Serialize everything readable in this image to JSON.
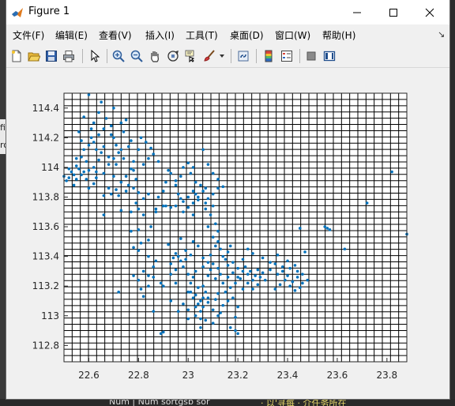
{
  "window": {
    "title": "Figure 1"
  },
  "menu": [
    "文件(F)",
    "编辑(E)",
    "查看(V)",
    "插入(I)",
    "工具(T)",
    "桌面(D)",
    "窗口(W)",
    "帮助(H)"
  ],
  "toolbar": {
    "icons": [
      "new-figure-icon",
      "open-file-icon",
      "save-icon",
      "print-icon",
      "pointer-icon",
      "zoom-in-icon",
      "zoom-out-icon",
      "pan-icon",
      "rotate-3d-icon",
      "data-cursor-icon",
      "brush-icon",
      "link-plot-icon",
      "insert-colorbar-icon",
      "insert-legend-icon",
      "hide-plot-tools-icon",
      "show-plot-tools-icon"
    ]
  },
  "background_fragments": {
    "left": [
      "fi",
      "ro"
    ],
    "bottom": [
      "Num    |  Num    sortgsb sor",
      "·   以'寻每 · 介任务所在"
    ]
  },
  "chart_data": {
    "type": "scatter",
    "title": "",
    "xlabel": "",
    "ylabel": "",
    "xlim": [
      22.5,
      23.88
    ],
    "ylim": [
      112.69,
      114.5
    ],
    "xticks": [
      22.6,
      22.8,
      23,
      23.2,
      23.4,
      23.6,
      23.8
    ],
    "xtick_labels": [
      "22.6",
      "22.8",
      "23",
      "23.2",
      "23.4",
      "23.6",
      "23.8"
    ],
    "yticks": [
      112.8,
      113,
      113.2,
      113.4,
      113.6,
      113.8,
      114,
      114.2,
      114.4
    ],
    "ytick_labels": [
      "112.8",
      "113",
      "113.2",
      "113.4",
      "113.6",
      "113.8",
      "114",
      "114.2",
      "114.4"
    ],
    "grid": "fine mesh (~0.033 x 0.042 spacing)",
    "grid_nx": 42,
    "grid_ny": 43,
    "marker_color": "#0072bd",
    "points": [
      [
        22.5,
        113.94
      ],
      [
        22.52,
        113.93
      ],
      [
        22.54,
        113.95
      ],
      [
        22.53,
        113.97
      ],
      [
        22.55,
        114.01
      ],
      [
        22.56,
        113.99
      ],
      [
        22.57,
        113.95
      ],
      [
        22.55,
        113.92
      ],
      [
        22.51,
        113.91
      ],
      [
        22.58,
        113.97
      ],
      [
        22.59,
        114.04
      ],
      [
        22.57,
        114.07
      ],
      [
        22.58,
        114.12
      ],
      [
        22.6,
        114.15
      ],
      [
        22.61,
        114.2
      ],
      [
        22.62,
        114.17
      ],
      [
        22.63,
        114.12
      ],
      [
        22.65,
        114.1
      ],
      [
        22.64,
        114.05
      ],
      [
        22.62,
        114.0
      ],
      [
        22.6,
        113.98
      ],
      [
        22.63,
        113.93
      ],
      [
        22.66,
        113.96
      ],
      [
        22.68,
        114.02
      ],
      [
        22.7,
        114.06
      ],
      [
        22.72,
        114.1
      ],
      [
        22.71,
        114.15
      ],
      [
        22.69,
        114.22
      ],
      [
        22.66,
        114.26
      ],
      [
        22.62,
        114.3
      ],
      [
        22.58,
        114.34
      ],
      [
        22.56,
        114.24
      ],
      [
        22.6,
        114.49
      ],
      [
        22.65,
        114.44
      ],
      [
        22.69,
        114.28
      ],
      [
        22.73,
        114.3
      ],
      [
        22.75,
        114.32
      ],
      [
        22.74,
        114.24
      ],
      [
        22.77,
        114.18
      ],
      [
        22.8,
        114.12
      ],
      [
        22.81,
        114.2
      ],
      [
        22.83,
        114.17
      ],
      [
        22.85,
        114.13
      ],
      [
        22.84,
        114.06
      ],
      [
        22.82,
        114.02
      ],
      [
        22.78,
        113.98
      ],
      [
        22.75,
        113.94
      ],
      [
        22.73,
        113.9
      ],
      [
        22.71,
        113.85
      ],
      [
        22.69,
        113.82
      ],
      [
        22.72,
        113.81
      ],
      [
        22.75,
        113.84
      ],
      [
        22.78,
        113.86
      ],
      [
        22.8,
        113.83
      ],
      [
        22.82,
        113.79
      ],
      [
        22.79,
        113.76
      ],
      [
        22.8,
        113.72
      ],
      [
        22.77,
        113.7
      ],
      [
        22.82,
        113.68
      ],
      [
        22.87,
        113.72
      ],
      [
        22.9,
        113.74
      ],
      [
        22.93,
        113.73
      ],
      [
        22.85,
        113.6
      ],
      [
        22.8,
        113.58
      ],
      [
        22.77,
        113.57
      ],
      [
        22.84,
        113.51
      ],
      [
        22.81,
        113.49
      ],
      [
        22.78,
        113.46
      ],
      [
        22.8,
        113.44
      ],
      [
        22.84,
        113.4
      ],
      [
        22.87,
        113.37
      ],
      [
        22.86,
        113.33
      ],
      [
        22.82,
        113.3
      ],
      [
        22.84,
        113.27
      ],
      [
        22.86,
        113.26
      ],
      [
        22.8,
        113.24
      ],
      [
        22.78,
        113.27
      ],
      [
        22.72,
        113.16
      ],
      [
        22.82,
        113.13
      ],
      [
        22.86,
        113.03
      ],
      [
        22.9,
        112.89
      ],
      [
        22.89,
        112.88
      ],
      [
        22.9,
        113.2
      ],
      [
        22.95,
        113.22
      ],
      [
        22.93,
        113.35
      ],
      [
        22.94,
        113.39
      ],
      [
        22.95,
        113.42
      ],
      [
        22.97,
        113.37
      ],
      [
        22.96,
        113.4
      ],
      [
        22.99,
        113.38
      ],
      [
        22.98,
        113.33
      ],
      [
        22.95,
        113.31
      ],
      [
        23.0,
        113.28
      ],
      [
        23.02,
        113.26
      ],
      [
        23.01,
        113.22
      ],
      [
        23.0,
        113.16
      ],
      [
        23.02,
        113.12
      ],
      [
        23.03,
        113.14
      ],
      [
        23.05,
        113.1
      ],
      [
        23.04,
        113.08
      ],
      [
        23.06,
        113.12
      ],
      [
        23.07,
        113.16
      ],
      [
        23.06,
        113.06
      ],
      [
        23.05,
        113.03
      ],
      [
        23.03,
        113.0
      ],
      [
        23.0,
        113.04
      ],
      [
        22.98,
        113.08
      ],
      [
        23.01,
        113.16
      ],
      [
        23.04,
        113.19
      ],
      [
        23.08,
        113.12
      ],
      [
        23.08,
        113.27
      ],
      [
        23.09,
        113.31
      ],
      [
        23.1,
        113.35
      ],
      [
        23.12,
        113.32
      ],
      [
        23.13,
        113.28
      ],
      [
        23.11,
        113.25
      ],
      [
        23.14,
        113.22
      ],
      [
        23.16,
        113.26
      ],
      [
        23.18,
        113.29
      ],
      [
        23.2,
        113.32
      ],
      [
        23.22,
        113.3
      ],
      [
        23.24,
        113.28
      ],
      [
        23.21,
        113.25
      ],
      [
        23.19,
        113.22
      ],
      [
        23.17,
        113.19
      ],
      [
        23.15,
        113.16
      ],
      [
        23.23,
        113.33
      ],
      [
        23.25,
        113.3
      ],
      [
        23.27,
        113.27
      ],
      [
        23.26,
        113.24
      ],
      [
        23.28,
        113.31
      ],
      [
        23.15,
        113.38
      ],
      [
        23.16,
        113.43
      ],
      [
        23.13,
        113.45
      ],
      [
        23.11,
        113.47
      ],
      [
        23.1,
        113.53
      ],
      [
        23.12,
        113.57
      ],
      [
        23.02,
        113.5
      ],
      [
        23.04,
        113.47
      ],
      [
        23.06,
        113.39
      ],
      [
        23.08,
        113.36
      ],
      [
        23.18,
        113.12
      ],
      [
        23.2,
        113.06
      ],
      [
        23.19,
        112.99
      ],
      [
        23.17,
        112.92
      ],
      [
        23.19,
        112.9
      ],
      [
        23.2,
        112.88
      ],
      [
        23.1,
        112.95
      ],
      [
        23.05,
        112.92
      ],
      [
        23.12,
        113.0
      ],
      [
        22.98,
        113.7
      ],
      [
        23.0,
        113.73
      ],
      [
        23.02,
        113.76
      ],
      [
        23.04,
        113.8
      ],
      [
        23.06,
        113.84
      ],
      [
        23.07,
        113.86
      ],
      [
        23.05,
        113.88
      ],
      [
        23.03,
        113.9
      ],
      [
        23.04,
        113.78
      ],
      [
        23.08,
        113.79
      ],
      [
        23.1,
        113.82
      ],
      [
        23.12,
        113.86
      ],
      [
        23.1,
        113.74
      ],
      [
        23.07,
        113.72
      ],
      [
        23.02,
        113.68
      ],
      [
        22.98,
        113.77
      ],
      [
        22.96,
        113.82
      ],
      [
        22.95,
        113.88
      ],
      [
        22.97,
        113.94
      ],
      [
        22.98,
        114.0
      ],
      [
        23.0,
        114.03
      ],
      [
        23.02,
        114.0
      ],
      [
        22.93,
        113.96
      ],
      [
        22.91,
        113.9
      ],
      [
        22.88,
        114.04
      ],
      [
        22.86,
        114.09
      ],
      [
        23.06,
        114.12
      ],
      [
        23.08,
        114.02
      ],
      [
        23.1,
        113.96
      ],
      [
        23.12,
        113.92
      ],
      [
        23.14,
        113.87
      ],
      [
        23.02,
        113.84
      ],
      [
        23.0,
        113.8
      ],
      [
        22.97,
        113.79
      ],
      [
        22.95,
        113.74
      ],
      [
        22.92,
        113.98
      ],
      [
        23.35,
        113.35
      ],
      [
        23.38,
        113.33
      ],
      [
        23.4,
        113.27
      ],
      [
        23.42,
        113.23
      ],
      [
        23.44,
        113.26
      ],
      [
        23.46,
        113.22
      ],
      [
        23.45,
        113.19
      ],
      [
        23.43,
        113.17
      ],
      [
        23.41,
        113.2
      ],
      [
        23.39,
        113.24
      ],
      [
        23.37,
        113.21
      ],
      [
        23.35,
        113.18
      ],
      [
        23.33,
        113.31
      ],
      [
        23.44,
        113.3
      ],
      [
        23.43,
        113.34
      ],
      [
        23.4,
        113.37
      ],
      [
        23.36,
        113.41
      ],
      [
        23.45,
        113.59
      ],
      [
        23.47,
        113.43
      ],
      [
        23.56,
        113.59
      ],
      [
        23.55,
        113.6
      ],
      [
        23.57,
        113.58
      ],
      [
        23.63,
        113.45
      ],
      [
        23.72,
        113.76
      ],
      [
        23.82,
        113.97
      ],
      [
        23.88,
        113.55
      ],
      [
        22.66,
        113.81
      ],
      [
        22.7,
        113.94
      ],
      [
        22.76,
        113.88
      ],
      [
        22.79,
        113.92
      ],
      [
        22.62,
        113.89
      ],
      [
        22.6,
        113.86
      ],
      [
        22.66,
        113.68
      ],
      [
        22.73,
        113.71
      ],
      [
        22.88,
        113.8
      ],
      [
        22.91,
        113.74
      ],
      [
        22.87,
        113.7
      ],
      [
        23.14,
        113.07
      ],
      [
        23.16,
        113.1
      ],
      [
        23.22,
        113.18
      ],
      [
        23.1,
        113.04
      ],
      [
        23.08,
        113.09
      ],
      [
        23.06,
        113.2
      ],
      [
        23.12,
        113.15
      ],
      [
        23.16,
        113.34
      ],
      [
        23.18,
        113.36
      ],
      [
        23.2,
        113.26
      ],
      [
        23.24,
        113.22
      ],
      [
        23.26,
        113.18
      ],
      [
        23.29,
        113.26
      ],
      [
        23.3,
        113.29
      ],
      [
        23.31,
        113.24
      ],
      [
        23.28,
        113.21
      ],
      [
        23.22,
        113.38
      ],
      [
        22.92,
        113.48
      ],
      [
        22.97,
        113.52
      ],
      [
        22.99,
        113.44
      ],
      [
        23.01,
        113.41
      ],
      [
        22.93,
        113.28
      ],
      [
        22.89,
        113.22
      ],
      [
        22.84,
        113.2
      ],
      [
        22.81,
        113.18
      ],
      [
        23.0,
        112.98
      ],
      [
        22.96,
        113.03
      ],
      [
        22.93,
        113.1
      ],
      [
        23.03,
        113.3
      ],
      [
        23.06,
        113.33
      ],
      [
        23.09,
        113.41
      ],
      [
        23.14,
        113.4
      ],
      [
        23.17,
        113.47
      ],
      [
        23.12,
        113.5
      ],
      [
        22.64,
        114.22
      ],
      [
        22.67,
        114.33
      ],
      [
        22.7,
        114.2
      ],
      [
        22.76,
        114.14
      ],
      [
        22.74,
        114.06
      ],
      [
        22.78,
        114.04
      ],
      [
        22.66,
        114.14
      ],
      [
        22.68,
        114.07
      ],
      [
        22.55,
        114.06
      ],
      [
        22.57,
        114.18
      ],
      [
        22.61,
        114.26
      ],
      [
        22.64,
        114.37
      ],
      [
        22.7,
        114.4
      ],
      [
        22.73,
        114.12
      ],
      [
        22.71,
        114.02
      ],
      [
        22.77,
        113.99
      ],
      [
        22.63,
        113.97
      ],
      [
        22.59,
        113.92
      ],
      [
        22.54,
        113.88
      ],
      [
        22.52,
        113.99
      ],
      [
        22.68,
        113.86
      ],
      [
        22.84,
        113.82
      ],
      [
        22.9,
        113.84
      ],
      [
        22.95,
        113.91
      ],
      [
        23.01,
        113.96
      ],
      [
        23.03,
        113.82
      ],
      [
        23.07,
        113.76
      ],
      [
        23.09,
        113.68
      ],
      [
        23.11,
        113.62
      ],
      [
        23.08,
        113.6
      ],
      [
        23.24,
        113.45
      ],
      [
        23.26,
        113.42
      ],
      [
        23.3,
        113.39
      ],
      [
        23.33,
        113.36
      ],
      [
        23.36,
        113.28
      ],
      [
        23.38,
        113.3
      ],
      [
        23.41,
        113.32
      ],
      [
        23.46,
        113.28
      ],
      [
        23.48,
        113.24
      ],
      [
        23.05,
        112.98
      ],
      [
        23.03,
        113.06
      ],
      [
        23.07,
        112.97
      ],
      [
        23.11,
        113.11
      ],
      [
        23.13,
        113.02
      ]
    ]
  }
}
